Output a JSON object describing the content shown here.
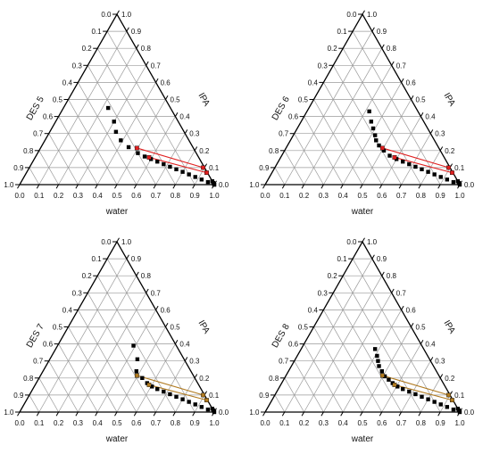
{
  "chart_data": [
    {
      "type": "scatter",
      "subtype": "ternary",
      "axes": {
        "bottom": "water",
        "left": "DES 5",
        "right": "IPA"
      },
      "ticks": [
        "0.0",
        "0.1",
        "0.2",
        "0.3",
        "0.4",
        "0.5",
        "0.6",
        "0.7",
        "0.8",
        "0.9",
        "1.0"
      ],
      "tie_line_color": "#e02020",
      "binodal_points_des_ipa": [
        [
          0.0,
          0.0
        ],
        [
          0.025,
          0.015
        ],
        [
          0.05,
          0.03
        ],
        [
          0.075,
          0.045
        ],
        [
          0.1,
          0.06
        ],
        [
          0.125,
          0.075
        ],
        [
          0.15,
          0.09
        ],
        [
          0.175,
          0.105
        ],
        [
          0.2,
          0.12
        ],
        [
          0.225,
          0.135
        ],
        [
          0.25,
          0.15
        ],
        [
          0.275,
          0.165
        ],
        [
          0.3,
          0.185
        ],
        [
          0.33,
          0.22
        ],
        [
          0.35,
          0.26
        ],
        [
          0.35,
          0.31
        ],
        [
          0.33,
          0.37
        ],
        [
          0.32,
          0.45
        ],
        [
          0.0,
          0.0
        ],
        [
          0.0,
          0.01
        ],
        [
          0.0,
          0.02
        ]
      ],
      "tie_line_points_des_ipa": [
        [
          0.255,
          0.16
        ],
        [
          0.29,
          0.215
        ],
        [
          0.007,
          0.1
        ],
        [
          0.004,
          0.07
        ]
      ],
      "tie_lines": [
        [
          [
            0.29,
            0.215
          ],
          [
            0.007,
            0.1
          ]
        ],
        [
          [
            0.255,
            0.16
          ],
          [
            0.004,
            0.07
          ]
        ]
      ]
    },
    {
      "type": "scatter",
      "subtype": "ternary",
      "axes": {
        "bottom": "water",
        "left": "DES 6",
        "right": "IPA"
      },
      "ticks": [
        "0.0",
        "0.1",
        "0.2",
        "0.3",
        "0.4",
        "0.5",
        "0.6",
        "0.7",
        "0.8",
        "0.9",
        "1.0"
      ],
      "tie_line_color": "#e02020",
      "binodal_points_des_ipa": [
        [
          0.0,
          0.0
        ],
        [
          0.025,
          0.015
        ],
        [
          0.05,
          0.03
        ],
        [
          0.075,
          0.045
        ],
        [
          0.1,
          0.06
        ],
        [
          0.125,
          0.075
        ],
        [
          0.15,
          0.09
        ],
        [
          0.175,
          0.105
        ],
        [
          0.2,
          0.12
        ],
        [
          0.225,
          0.135
        ],
        [
          0.25,
          0.15
        ],
        [
          0.275,
          0.17
        ],
        [
          0.29,
          0.2
        ],
        [
          0.3,
          0.23
        ],
        [
          0.3,
          0.26
        ],
        [
          0.29,
          0.29
        ],
        [
          0.28,
          0.33
        ],
        [
          0.27,
          0.37
        ],
        [
          0.25,
          0.43
        ],
        [
          0.0,
          0.01
        ],
        [
          0.0,
          0.02
        ]
      ],
      "tie_line_points_des_ipa": [
        [
          0.255,
          0.16
        ],
        [
          0.29,
          0.215
        ],
        [
          0.007,
          0.1
        ],
        [
          0.004,
          0.07
        ]
      ],
      "tie_lines": [
        [
          [
            0.29,
            0.215
          ],
          [
            0.007,
            0.1
          ]
        ],
        [
          [
            0.255,
            0.16
          ],
          [
            0.004,
            0.07
          ]
        ]
      ]
    },
    {
      "type": "scatter",
      "subtype": "ternary",
      "axes": {
        "bottom": "water",
        "left": "DES 7",
        "right": "IPA"
      },
      "ticks": [
        "0.0",
        "0.1",
        "0.2",
        "0.3",
        "0.4",
        "0.5",
        "0.6",
        "0.7",
        "0.8",
        "0.9",
        "1.0"
      ],
      "tie_line_color": "#b07a20",
      "binodal_points_des_ipa": [
        [
          0.0,
          0.0
        ],
        [
          0.025,
          0.015
        ],
        [
          0.05,
          0.03
        ],
        [
          0.075,
          0.045
        ],
        [
          0.1,
          0.06
        ],
        [
          0.125,
          0.075
        ],
        [
          0.15,
          0.09
        ],
        [
          0.175,
          0.105
        ],
        [
          0.2,
          0.12
        ],
        [
          0.225,
          0.135
        ],
        [
          0.245,
          0.15
        ],
        [
          0.26,
          0.17
        ],
        [
          0.27,
          0.2
        ],
        [
          0.28,
          0.24
        ],
        [
          0.24,
          0.31
        ],
        [
          0.22,
          0.39
        ],
        [
          0.0,
          0.01
        ],
        [
          0.0,
          0.02
        ]
      ],
      "tie_line_points_des_ipa": [
        [
          0.255,
          0.16
        ],
        [
          0.29,
          0.215
        ],
        [
          0.007,
          0.1
        ],
        [
          0.004,
          0.07
        ]
      ],
      "tie_lines": [
        [
          [
            0.29,
            0.215
          ],
          [
            0.007,
            0.1
          ]
        ],
        [
          [
            0.255,
            0.16
          ],
          [
            0.004,
            0.07
          ]
        ]
      ]
    },
    {
      "type": "scatter",
      "subtype": "ternary",
      "axes": {
        "bottom": "water",
        "left": "DES 8",
        "right": "IPA"
      },
      "ticks": [
        "0.0",
        "0.1",
        "0.2",
        "0.3",
        "0.4",
        "0.5",
        "0.6",
        "0.7",
        "0.8",
        "0.9",
        "1.0"
      ],
      "tie_line_color": "#b07a20",
      "binodal_points_des_ipa": [
        [
          0.0,
          0.0
        ],
        [
          0.025,
          0.015
        ],
        [
          0.05,
          0.03
        ],
        [
          0.075,
          0.045
        ],
        [
          0.1,
          0.06
        ],
        [
          0.125,
          0.075
        ],
        [
          0.15,
          0.09
        ],
        [
          0.175,
          0.105
        ],
        [
          0.2,
          0.12
        ],
        [
          0.225,
          0.135
        ],
        [
          0.245,
          0.15
        ],
        [
          0.26,
          0.17
        ],
        [
          0.27,
          0.19
        ],
        [
          0.28,
          0.21
        ],
        [
          0.28,
          0.24
        ],
        [
          0.28,
          0.27
        ],
        [
          0.27,
          0.3
        ],
        [
          0.26,
          0.33
        ],
        [
          0.25,
          0.37
        ],
        [
          0.0,
          0.01
        ],
        [
          0.0,
          0.02
        ]
      ],
      "tie_line_points_des_ipa": [
        [
          0.255,
          0.16
        ],
        [
          0.29,
          0.215
        ],
        [
          0.007,
          0.1
        ],
        [
          0.004,
          0.07
        ]
      ],
      "tie_lines": [
        [
          [
            0.29,
            0.215
          ],
          [
            0.007,
            0.1
          ]
        ],
        [
          [
            0.255,
            0.16
          ],
          [
            0.004,
            0.07
          ]
        ]
      ]
    }
  ]
}
